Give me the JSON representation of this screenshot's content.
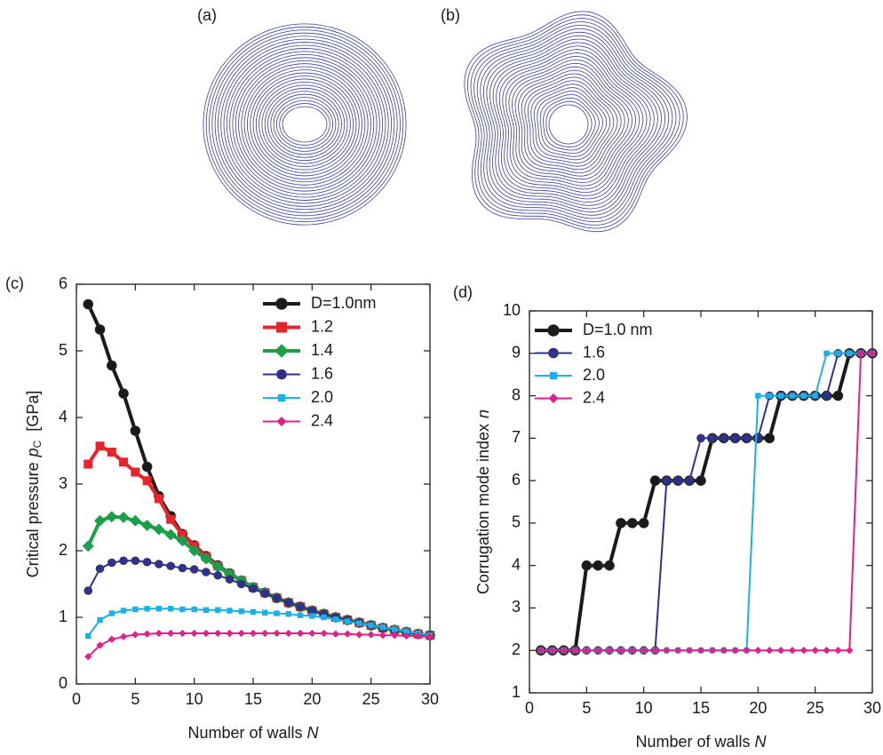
{
  "panels": {
    "a": "(a)",
    "b": "(b)"
  },
  "chart_data": [
    {
      "type": "line",
      "panel_label": "(c)",
      "xlabel": "Number of walls",
      "xlabel_var": "N",
      "ylabel": "Critical pressure",
      "ylabel_var": "p",
      "ylabel_sub": "C",
      "ylabel_unit": "[GPa]",
      "xlim": [
        0,
        30
      ],
      "xticks": [
        0,
        5,
        10,
        15,
        20,
        25,
        30
      ],
      "ylim": [
        0,
        6
      ],
      "yticks": [
        0,
        1,
        2,
        3,
        4,
        5,
        6
      ],
      "x": [
        1,
        2,
        3,
        4,
        5,
        6,
        7,
        8,
        9,
        10,
        11,
        12,
        13,
        14,
        15,
        16,
        17,
        18,
        19,
        20,
        21,
        22,
        23,
        24,
        25,
        26,
        27,
        28,
        29,
        30
      ],
      "series": [
        {
          "name": "D=1.0nm",
          "color": "#1a1a1a",
          "marker": "circle",
          "values": [
            5.7,
            5.32,
            4.78,
            4.36,
            3.8,
            3.26,
            2.82,
            2.52,
            2.25,
            2.08,
            1.92,
            1.78,
            1.66,
            1.55,
            1.45,
            1.37,
            1.29,
            1.22,
            1.16,
            1.1,
            1.05,
            1.0,
            0.96,
            0.92,
            0.88,
            0.84,
            0.81,
            0.78,
            0.75,
            0.73
          ]
        },
        {
          "name": "1.2",
          "color": "#e8242a",
          "marker": "square",
          "values": [
            3.3,
            3.57,
            3.48,
            3.33,
            3.18,
            3.05,
            2.78,
            2.47,
            2.24,
            2.07,
            1.91,
            1.77,
            1.65,
            1.55,
            1.45,
            1.37,
            1.29,
            1.22,
            1.16,
            1.1,
            1.05,
            1.0,
            0.96,
            0.92,
            0.88,
            0.84,
            0.81,
            0.78,
            0.75,
            0.73
          ]
        },
        {
          "name": "1.4",
          "color": "#1aa04a",
          "marker": "diamond",
          "values": [
            2.07,
            2.45,
            2.51,
            2.5,
            2.45,
            2.38,
            2.32,
            2.24,
            2.15,
            2.0,
            1.88,
            1.76,
            1.65,
            1.55,
            1.45,
            1.37,
            1.29,
            1.22,
            1.16,
            1.1,
            1.05,
            1.0,
            0.96,
            0.92,
            0.88,
            0.84,
            0.81,
            0.78,
            0.75,
            0.73
          ]
        },
        {
          "name": "1.6",
          "color": "#2e3192",
          "marker": "circle",
          "values": [
            1.4,
            1.73,
            1.82,
            1.85,
            1.85,
            1.83,
            1.8,
            1.77,
            1.74,
            1.72,
            1.68,
            1.63,
            1.57,
            1.5,
            1.43,
            1.36,
            1.29,
            1.22,
            1.16,
            1.1,
            1.05,
            1.0,
            0.96,
            0.92,
            0.88,
            0.84,
            0.81,
            0.78,
            0.75,
            0.73
          ]
        },
        {
          "name": "2.0",
          "color": "#1ab0e8",
          "marker": "square",
          "values": [
            0.72,
            0.96,
            1.06,
            1.1,
            1.12,
            1.13,
            1.13,
            1.13,
            1.12,
            1.12,
            1.11,
            1.11,
            1.1,
            1.09,
            1.08,
            1.07,
            1.06,
            1.05,
            1.03,
            1.02,
            1.0,
            0.97,
            0.94,
            0.91,
            0.88,
            0.85,
            0.82,
            0.79,
            0.76,
            0.73
          ]
        },
        {
          "name": "2.4",
          "color": "#e0218a",
          "marker": "diamond",
          "values": [
            0.41,
            0.58,
            0.67,
            0.71,
            0.74,
            0.75,
            0.76,
            0.76,
            0.76,
            0.76,
            0.76,
            0.76,
            0.76,
            0.76,
            0.76,
            0.76,
            0.76,
            0.76,
            0.76,
            0.76,
            0.76,
            0.75,
            0.75,
            0.74,
            0.74,
            0.73,
            0.73,
            0.72,
            0.72,
            0.71
          ]
        }
      ]
    },
    {
      "type": "line",
      "panel_label": "(d)",
      "xlabel": "Number of walls",
      "xlabel_var": "N",
      "ylabel": "Corrugation mode index",
      "ylabel_var": "n",
      "xlim": [
        0,
        30
      ],
      "xticks": [
        0,
        5,
        10,
        15,
        20,
        25,
        30
      ],
      "ylim": [
        1,
        10
      ],
      "yticks": [
        1,
        2,
        3,
        4,
        5,
        6,
        7,
        8,
        9,
        10
      ],
      "x": [
        1,
        2,
        3,
        4,
        5,
        6,
        7,
        8,
        9,
        10,
        11,
        12,
        13,
        14,
        15,
        16,
        17,
        18,
        19,
        20,
        21,
        22,
        23,
        24,
        25,
        26,
        27,
        28,
        29,
        30
      ],
      "series": [
        {
          "name": "D=1.0 nm",
          "color": "#1a1a1a",
          "marker": "circle",
          "values": [
            2,
            2,
            2,
            2,
            4,
            4,
            4,
            5,
            5,
            5,
            6,
            6,
            6,
            6,
            6,
            7,
            7,
            7,
            7,
            7,
            7,
            8,
            8,
            8,
            8,
            8,
            8,
            9,
            9,
            9
          ]
        },
        {
          "name": "1.6",
          "color": "#2e3192",
          "marker": "circle",
          "values": [
            2,
            2,
            2,
            2,
            2,
            2,
            2,
            2,
            2,
            2,
            2,
            6,
            6,
            6,
            7,
            7,
            7,
            7,
            7,
            7,
            8,
            8,
            8,
            8,
            8,
            8,
            9,
            9,
            9,
            9
          ]
        },
        {
          "name": "2.0",
          "color": "#1ab0e8",
          "marker": "square",
          "values": [
            2,
            2,
            2,
            2,
            2,
            2,
            2,
            2,
            2,
            2,
            2,
            2,
            2,
            2,
            2,
            2,
            2,
            2,
            2,
            8,
            8,
            8,
            8,
            8,
            8,
            9,
            9,
            9,
            9,
            9
          ]
        },
        {
          "name": "2.4",
          "color": "#e0218a",
          "marker": "diamond",
          "values": [
            2,
            2,
            2,
            2,
            2,
            2,
            2,
            2,
            2,
            2,
            2,
            2,
            2,
            2,
            2,
            2,
            2,
            2,
            2,
            2,
            2,
            2,
            2,
            2,
            2,
            2,
            2,
            2,
            9,
            9
          ]
        }
      ]
    }
  ]
}
